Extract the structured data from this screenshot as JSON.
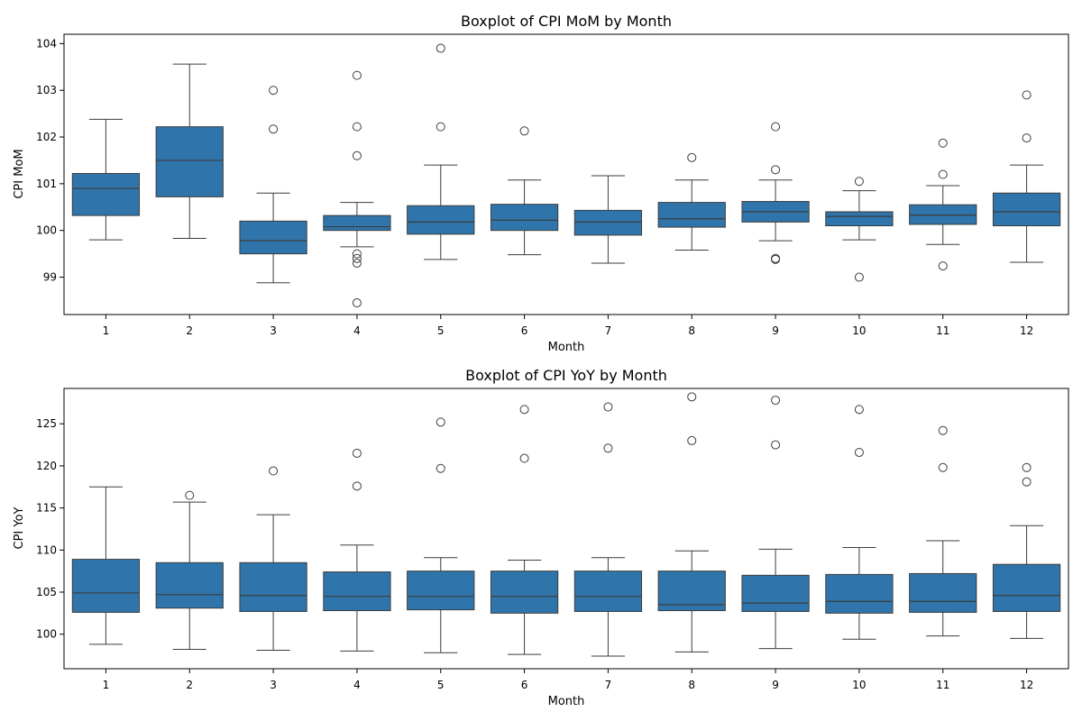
{
  "chart_data": [
    {
      "type": "boxplot",
      "title": "Boxplot of CPI MoM by Month",
      "xlabel": "Month",
      "ylabel": "CPI MoM",
      "ylim": [
        98.2,
        104.2
      ],
      "yticks": [
        99,
        100,
        101,
        102,
        103,
        104
      ],
      "box_color": "#2f74aa",
      "categories": [
        "1",
        "2",
        "3",
        "4",
        "5",
        "6",
        "7",
        "8",
        "9",
        "10",
        "11",
        "12"
      ],
      "boxes": [
        {
          "whisker_low": 99.8,
          "q1": 100.32,
          "median": 100.9,
          "q3": 101.22,
          "whisker_high": 102.38,
          "outliers": []
        },
        {
          "whisker_low": 99.83,
          "q1": 100.72,
          "median": 101.5,
          "q3": 102.22,
          "whisker_high": 103.56,
          "outliers": []
        },
        {
          "whisker_low": 98.88,
          "q1": 99.5,
          "median": 99.78,
          "q3": 100.2,
          "whisker_high": 100.8,
          "outliers": [
            103.0,
            102.17
          ]
        },
        {
          "whisker_low": 99.65,
          "q1": 100.0,
          "median": 100.08,
          "q3": 100.32,
          "whisker_high": 100.6,
          "outliers": [
            103.32,
            102.22,
            101.6,
            99.5,
            99.4,
            99.3,
            98.45
          ]
        },
        {
          "whisker_low": 99.38,
          "q1": 99.92,
          "median": 100.18,
          "q3": 100.53,
          "whisker_high": 101.4,
          "outliers": [
            103.9,
            102.22
          ]
        },
        {
          "whisker_low": 99.48,
          "q1": 100.0,
          "median": 100.22,
          "q3": 100.56,
          "whisker_high": 101.08,
          "outliers": [
            102.13
          ]
        },
        {
          "whisker_low": 99.3,
          "q1": 99.9,
          "median": 100.18,
          "q3": 100.43,
          "whisker_high": 101.17,
          "outliers": []
        },
        {
          "whisker_low": 99.58,
          "q1": 100.07,
          "median": 100.25,
          "q3": 100.6,
          "whisker_high": 101.08,
          "outliers": [
            101.56
          ]
        },
        {
          "whisker_low": 99.78,
          "q1": 100.18,
          "median": 100.4,
          "q3": 100.62,
          "whisker_high": 101.08,
          "outliers": [
            102.22,
            101.3,
            99.4,
            99.38
          ]
        },
        {
          "whisker_low": 99.8,
          "q1": 100.1,
          "median": 100.3,
          "q3": 100.4,
          "whisker_high": 100.85,
          "outliers": [
            101.05,
            99.0
          ]
        },
        {
          "whisker_low": 99.7,
          "q1": 100.13,
          "median": 100.33,
          "q3": 100.55,
          "whisker_high": 100.96,
          "outliers": [
            101.87,
            101.2,
            99.24
          ]
        },
        {
          "whisker_low": 99.32,
          "q1": 100.1,
          "median": 100.4,
          "q3": 100.8,
          "whisker_high": 101.4,
          "outliers": [
            102.9,
            101.98
          ]
        }
      ]
    },
    {
      "type": "boxplot",
      "title": "Boxplot of CPI YoY by Month",
      "xlabel": "Month",
      "ylabel": "CPI YoY",
      "ylim": [
        95.9,
        129.2
      ],
      "yticks": [
        100,
        105,
        110,
        115,
        120,
        125
      ],
      "box_color": "#2f74aa",
      "categories": [
        "1",
        "2",
        "3",
        "4",
        "5",
        "6",
        "7",
        "8",
        "9",
        "10",
        "11",
        "12"
      ],
      "boxes": [
        {
          "whisker_low": 98.8,
          "q1": 102.6,
          "median": 104.9,
          "q3": 108.9,
          "whisker_high": 117.5,
          "outliers": []
        },
        {
          "whisker_low": 98.2,
          "q1": 103.1,
          "median": 104.7,
          "q3": 108.5,
          "whisker_high": 115.7,
          "outliers": [
            116.5
          ]
        },
        {
          "whisker_low": 98.1,
          "q1": 102.7,
          "median": 104.6,
          "q3": 108.5,
          "whisker_high": 114.2,
          "outliers": [
            119.4
          ]
        },
        {
          "whisker_low": 98.0,
          "q1": 102.8,
          "median": 104.5,
          "q3": 107.4,
          "whisker_high": 110.6,
          "outliers": [
            121.5,
            117.6
          ]
        },
        {
          "whisker_low": 97.8,
          "q1": 102.9,
          "median": 104.5,
          "q3": 107.5,
          "whisker_high": 109.1,
          "outliers": [
            125.2,
            119.7
          ]
        },
        {
          "whisker_low": 97.6,
          "q1": 102.5,
          "median": 104.5,
          "q3": 107.5,
          "whisker_high": 108.8,
          "outliers": [
            126.7,
            120.9
          ]
        },
        {
          "whisker_low": 97.4,
          "q1": 102.7,
          "median": 104.5,
          "q3": 107.5,
          "whisker_high": 109.1,
          "outliers": [
            127.0,
            122.1
          ]
        },
        {
          "whisker_low": 97.9,
          "q1": 102.8,
          "median": 103.5,
          "q3": 107.5,
          "whisker_high": 109.9,
          "outliers": [
            128.2,
            123.0
          ]
        },
        {
          "whisker_low": 98.3,
          "q1": 102.7,
          "median": 103.7,
          "q3": 107.0,
          "whisker_high": 110.1,
          "outliers": [
            127.8,
            122.5
          ]
        },
        {
          "whisker_low": 99.4,
          "q1": 102.5,
          "median": 103.9,
          "q3": 107.1,
          "whisker_high": 110.3,
          "outliers": [
            126.7,
            121.6
          ]
        },
        {
          "whisker_low": 99.8,
          "q1": 102.6,
          "median": 103.9,
          "q3": 107.2,
          "whisker_high": 111.1,
          "outliers": [
            124.2,
            119.8
          ]
        },
        {
          "whisker_low": 99.5,
          "q1": 102.7,
          "median": 104.6,
          "q3": 108.3,
          "whisker_high": 112.9,
          "outliers": [
            119.8,
            118.1
          ]
        }
      ]
    }
  ]
}
